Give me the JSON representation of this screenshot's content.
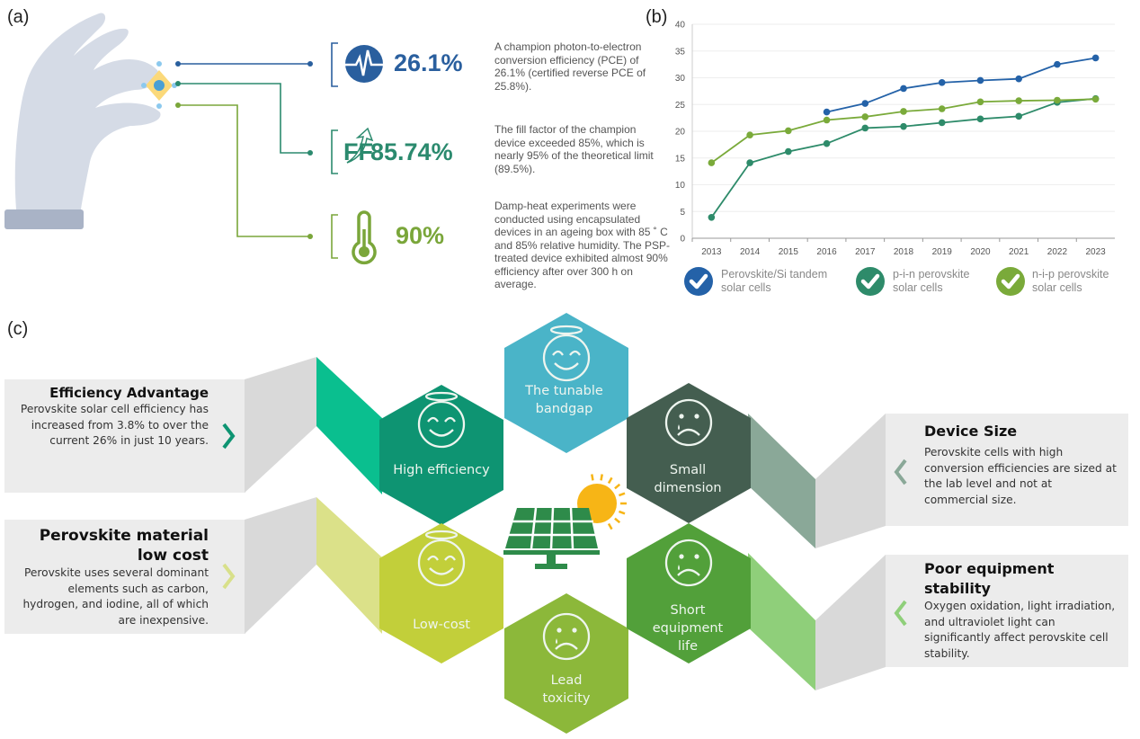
{
  "panel_a": {
    "label": "(a)",
    "metrics": [
      {
        "value": "26.1%",
        "icon": "pulse-icon",
        "color": "#2a5f9e",
        "description": "A champion photon-to-electron conversion efficiency (PCE) of 26.1% (certified reverse PCE of 25.8%)."
      },
      {
        "prefix": "FF",
        "value": "85.74%",
        "icon": "arrow-up-icon",
        "color": "#2b8a6e",
        "description": "The fill factor of the champion device exceeded 85%, which is nearly 95% of the theoretical limit (89.5%)."
      },
      {
        "value": "90%",
        "icon": "thermometer-icon",
        "color": "#7aa63a",
        "description": "Damp-heat experiments were conducted using encapsulated devices in an ageing box with 85 ˚ C and 85% relative humidity. The PSP-treated device exhibited almost 90% efficiency after over 300 h on average."
      }
    ]
  },
  "panel_b": {
    "label": "(b)"
  },
  "chart_data": {
    "type": "line",
    "title": "",
    "xlabel": "",
    "ylabel": "",
    "x": [
      2013,
      2014,
      2015,
      2016,
      2017,
      2018,
      2019,
      2020,
      2021,
      2022,
      2023
    ],
    "ylim": [
      0,
      40
    ],
    "yticks": [
      0,
      5,
      10,
      15,
      20,
      25,
      30,
      35,
      40
    ],
    "grid": true,
    "legend": "bottom",
    "series": [
      {
        "name": "Perovskite/Si tandem solar cells",
        "line1": "Perovskite/Si tandem",
        "line2": "solar cells",
        "color": "#2462a8",
        "values": [
          null,
          null,
          null,
          23.6,
          25.2,
          28.0,
          29.1,
          29.5,
          29.8,
          32.5,
          33.7
        ]
      },
      {
        "name": "p-i-n perovskite solar cells",
        "line1": "p-i-n perovskite",
        "line2": "solar cells",
        "color": "#2e8b6a",
        "values": [
          3.9,
          14.1,
          16.2,
          17.7,
          20.6,
          20.9,
          21.6,
          22.3,
          22.8,
          25.4,
          26.1
        ]
      },
      {
        "name": "n-i-p perovskite solar cells",
        "line1": "n-i-p perovskite",
        "line2": "solar cells",
        "color": "#7aaa3a",
        "values": [
          14.1,
          19.3,
          20.1,
          22.1,
          22.7,
          23.7,
          24.2,
          25.5,
          25.7,
          25.8,
          26.0
        ]
      }
    ]
  },
  "panel_c": {
    "label": "(c)",
    "cards": [
      {
        "title": "Efficiency Advantage",
        "body": "Perovskite solar cell efficiency has increased from 3.8% to over the current 26% in just 10 years.",
        "accent": "#0e9472"
      },
      {
        "title": "Perovskite material low cost",
        "body": "Perovskite uses several dominant elements such as carbon, hydrogen, and iodine, all of which are inexpensive.",
        "accent": "#d8e08a"
      },
      {
        "title": "Device Size",
        "body": "Perovskite cells with high conversion efficiencies are sized at the lab level and not at commercial size.",
        "accent": "#8aa898"
      },
      {
        "title": "Poor equipment stability",
        "body": "Oxygen oxidation, light irradiation, and ultraviolet light can significantly affect perovskite cell stability.",
        "accent": "#8fcf7a"
      }
    ],
    "hexagons": [
      {
        "label": "High efficiency",
        "mood": "happy",
        "color": "#0e9472"
      },
      {
        "label": "The tunable bandgap",
        "mood": "happy",
        "color": "#4ab4c8"
      },
      {
        "label": "Small dimension",
        "mood": "sad",
        "color": "#445e50"
      },
      {
        "label": "Low-cost",
        "mood": "happy",
        "color": "#c2cf3a"
      },
      {
        "label": "Lead toxicity",
        "mood": "sad",
        "color": "#8cb83a"
      },
      {
        "label": "Short equipment life",
        "mood": "sad",
        "color": "#52a03a"
      }
    ],
    "center_icon": "solar-panel-sun-icon"
  }
}
